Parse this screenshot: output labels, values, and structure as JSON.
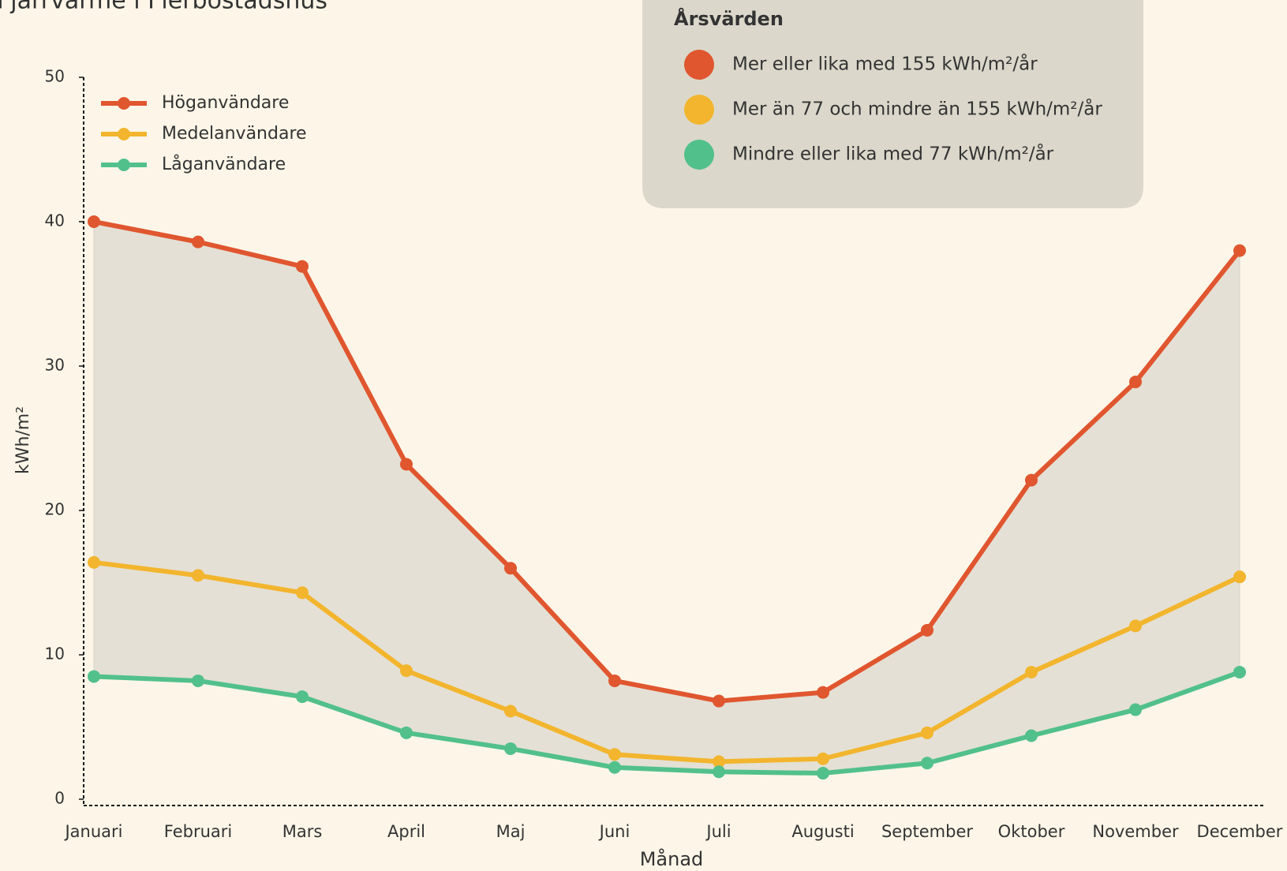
{
  "chart_data": {
    "type": "line",
    "title": "Fjärrvärme i Flerbostadshus",
    "x_label": "Månad",
    "y_label": "kWh/m²",
    "categories": [
      "Januari",
      "Februari",
      "Mars",
      "April",
      "Maj",
      "Juni",
      "Juli",
      "Augusti",
      "September",
      "Oktober",
      "November",
      "December"
    ],
    "series": [
      {
        "name": "Höganvändare",
        "color": "#e0562f",
        "values": [
          40,
          38.6,
          36.9,
          23.2,
          16.0,
          8.2,
          6.8,
          7.4,
          11.7,
          22.1,
          28.9,
          38.0
        ]
      },
      {
        "name": "Medelanvändare",
        "color": "#f2b52d",
        "values": [
          16.4,
          15.5,
          14.3,
          8.9,
          6.1,
          3.1,
          2.6,
          2.8,
          4.6,
          8.8,
          12.0,
          15.4
        ]
      },
      {
        "name": "Låganvändare",
        "color": "#52c08a",
        "values": [
          8.5,
          8.2,
          7.1,
          4.6,
          3.5,
          2.2,
          1.9,
          1.8,
          2.5,
          4.4,
          6.2,
          8.8
        ]
      }
    ],
    "ylim": [
      0,
      50
    ],
    "yticks": [
      0,
      10,
      20,
      30,
      40,
      50
    ],
    "range_fill": "#e4e0d5",
    "annual_box": {
      "title": "Årsvärden",
      "items": [
        {
          "label": "Mer eller lika med 155 kWh/m²/år",
          "color": "#e0562f"
        },
        {
          "label": "Mer än 77 och mindre än 155 kWh/m²/år",
          "color": "#f2b52d"
        },
        {
          "label": "Mindre eller lika med 77 kWh/m²/år",
          "color": "#52c08a"
        }
      ]
    }
  }
}
